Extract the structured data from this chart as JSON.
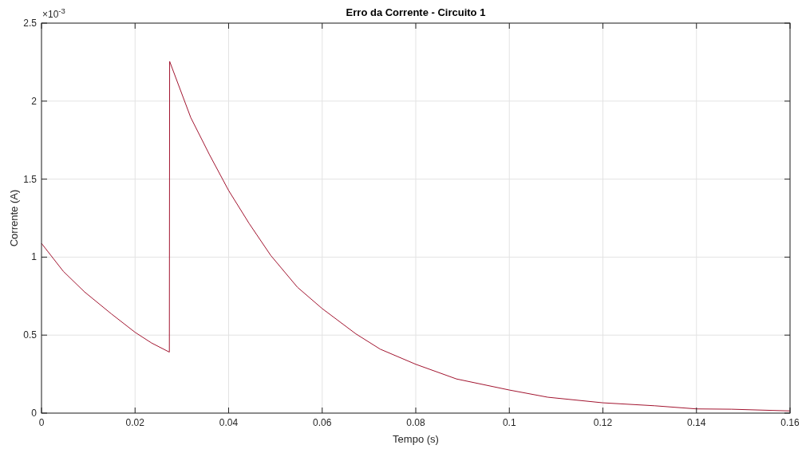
{
  "chart_data": {
    "type": "line",
    "title": "Erro da Corrente - Circuito 1",
    "xlabel": "Tempo (s)",
    "ylabel": "Corrente (A)",
    "annotations": [
      "×10$^{-3}$"
    ],
    "xlim": [
      0,
      0.16
    ],
    "xticks": [
      0,
      0.02,
      0.04,
      0.06,
      0.08,
      0.1,
      0.12,
      0.14,
      0.16
    ],
    "ylim": [
      0,
      2.5
    ],
    "yticks": [
      0,
      0.5,
      1,
      1.5,
      2,
      2.5
    ],
    "grid": true,
    "series": [
      {
        "color": "#a2142f",
        "x": [
          0,
          0.00466,
          0.0092,
          0.0149,
          0.02,
          0.0235,
          0.02733,
          0.02739,
          0.0319,
          0.0359,
          0.04,
          0.0444,
          0.049,
          0.0547,
          0.06,
          0.0672,
          0.0724,
          0.08,
          0.0887,
          0.1,
          0.1082,
          0.12,
          0.1311,
          0.14,
          0.1475,
          0.16
        ],
        "values": [
          1.088,
          0.909,
          0.777,
          0.637,
          0.518,
          0.45,
          0.391,
          2.255,
          1.895,
          1.657,
          1.427,
          1.215,
          1.011,
          0.807,
          0.67,
          0.508,
          0.41,
          0.313,
          0.219,
          0.148,
          0.102,
          0.066,
          0.047,
          0.027,
          0.025,
          0.014
        ]
      }
    ]
  }
}
